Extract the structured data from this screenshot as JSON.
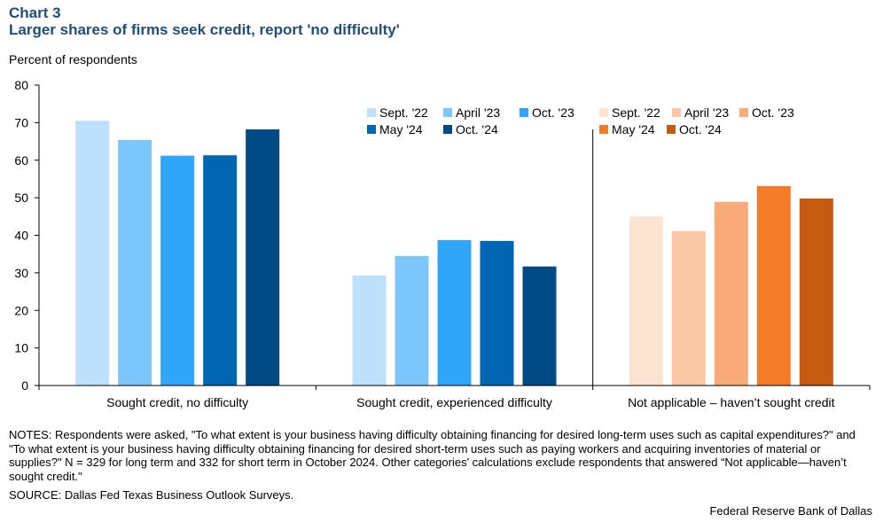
{
  "header": {
    "chart_number": "Chart 3",
    "title": "Larger shares of firms seek credit, report 'no difficulty'"
  },
  "colors": {
    "blue": [
      "#bde0fb",
      "#7cc6fb",
      "#30a6fb",
      "#0066b3",
      "#004b85"
    ],
    "orange": [
      "#fde3d2",
      "#fbc8a5",
      "#f8ab78",
      "#f47b28",
      "#c55a10"
    ],
    "axis": "#000000"
  },
  "legend_blue": {
    "row1": [
      "Sept. '22",
      "April '23",
      "Oct. '23"
    ],
    "row2": [
      "May '24",
      "Oct. '24"
    ]
  },
  "legend_orange": {
    "row1": [
      "Sept. '22",
      "April '23",
      "Oct. '23"
    ],
    "row2": [
      "May '24",
      "Oct. '24"
    ]
  },
  "chart_data": {
    "type": "bar",
    "title": "Larger shares of firms seek credit, report 'no difficulty'",
    "ylabel": "Percent of respondents",
    "xlabel": "",
    "ylim": [
      0,
      80
    ],
    "yticks": [
      0,
      10,
      20,
      30,
      40,
      50,
      60,
      70,
      80
    ],
    "categories": [
      "Sought credit, no difficulty",
      "Sought credit, experienced difficulty",
      "Not applicable – haven’t sought credit"
    ],
    "series": [
      {
        "name": "Sept. '22",
        "values": [
          70.5,
          29.3,
          45.0
        ]
      },
      {
        "name": "April '23",
        "values": [
          65.4,
          34.5,
          41.1
        ]
      },
      {
        "name": "Oct. '23",
        "values": [
          61.2,
          38.7,
          48.9
        ]
      },
      {
        "name": "May '24",
        "values": [
          61.3,
          38.5,
          53.1
        ]
      },
      {
        "name": "Oct. '24",
        "values": [
          68.2,
          31.7,
          49.8
        ]
      }
    ],
    "palette_by_category": [
      "blue",
      "blue",
      "orange"
    ]
  },
  "notes": "NOTES: Respondents were asked, \"To what extent is your business having difficulty obtaining financing for desired long-term uses such as capital expenditures?\" and \"To what extent is your business having difficulty obtaining financing for desired short-term uses such as paying workers and acquiring inventories of material or supplies?\" N = 329 for long term and 332 for short term in October 2024. Other categories' calculations exclude respondents that answered “Not applicable—haven’t sought credit.\"",
  "source": "SOURCE: Dallas Fed Texas Business Outlook Surveys.",
  "footer": "Federal Reserve Bank of Dallas"
}
